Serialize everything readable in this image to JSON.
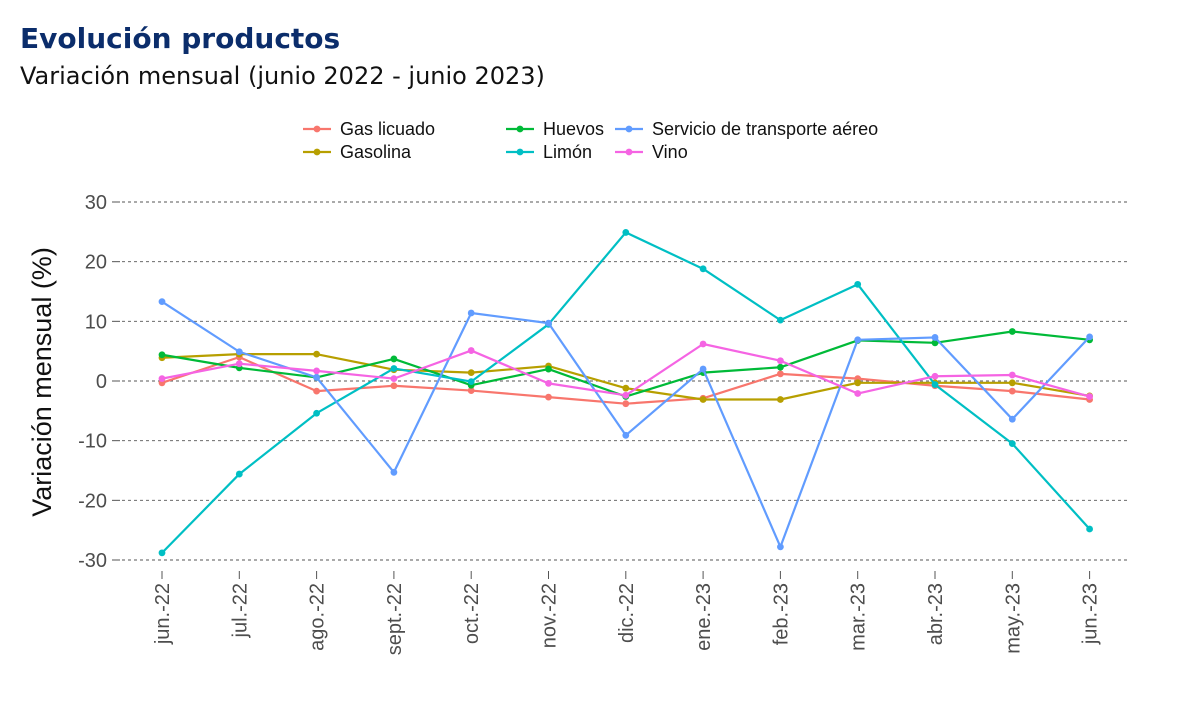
{
  "header": {
    "title": "Evolución productos",
    "subtitle": "Variación mensual (junio 2022 - junio 2023)"
  },
  "chart_data": {
    "type": "line",
    "title": "Evolución productos",
    "subtitle": "Variación mensual (junio 2022 - junio 2023)",
    "xlabel": "",
    "ylabel": "Variación mensual (%)",
    "ylim": [
      -30,
      30
    ],
    "yticks": [
      "30",
      "20",
      "10",
      "0",
      "-10",
      "-20",
      "-30"
    ],
    "ytick_values": [
      30,
      20,
      10,
      0,
      -10,
      -20,
      -30
    ],
    "grid": "horizontal dashed",
    "legend_position": "top",
    "categories": [
      "jun.-22",
      "jul.-22",
      "ago.-22",
      "sept.-22",
      "oct.-22",
      "nov.-22",
      "dic.-22",
      "ene.-23",
      "feb.-23",
      "mar.-23",
      "abr.-23",
      "may.-23",
      "jun.-23"
    ],
    "series": [
      {
        "name": "Gas licuado",
        "color": "#F8766D",
        "values": [
          -0.3,
          4.0,
          -1.7,
          -0.8,
          -1.6,
          -2.7,
          -3.8,
          -2.9,
          1.2,
          0.4,
          -0.8,
          -1.7,
          -3.1
        ]
      },
      {
        "name": "Gasolina",
        "color": "#B79F00",
        "values": [
          3.9,
          4.5,
          4.5,
          1.9,
          1.4,
          2.5,
          -1.2,
          -3.1,
          -3.1,
          -0.3,
          -0.3,
          -0.3,
          -2.5
        ]
      },
      {
        "name": "Huevos",
        "color": "#00BA38",
        "values": [
          4.4,
          2.2,
          0.6,
          3.7,
          -0.7,
          2.0,
          -2.6,
          1.4,
          2.3,
          6.8,
          6.4,
          8.3,
          6.9
        ]
      },
      {
        "name": "Limón",
        "color": "#00BFC4",
        "values": [
          -28.8,
          -15.6,
          -5.4,
          2.1,
          -0.1,
          9.5,
          24.9,
          18.8,
          10.2,
          16.2,
          -0.6,
          -10.5,
          -24.8
        ]
      },
      {
        "name": "Servicio de transporte aéreo",
        "color": "#619CFF",
        "values": [
          13.3,
          4.9,
          0.6,
          -15.3,
          11.4,
          9.7,
          -9.1,
          2.0,
          -27.8,
          6.9,
          7.3,
          -6.4,
          7.4
        ]
      },
      {
        "name": "Vino",
        "color": "#F564E3",
        "values": [
          0.4,
          2.9,
          1.7,
          0.4,
          5.1,
          -0.4,
          -2.4,
          6.2,
          3.4,
          -2.1,
          0.8,
          1.0,
          -2.6
        ]
      }
    ]
  }
}
